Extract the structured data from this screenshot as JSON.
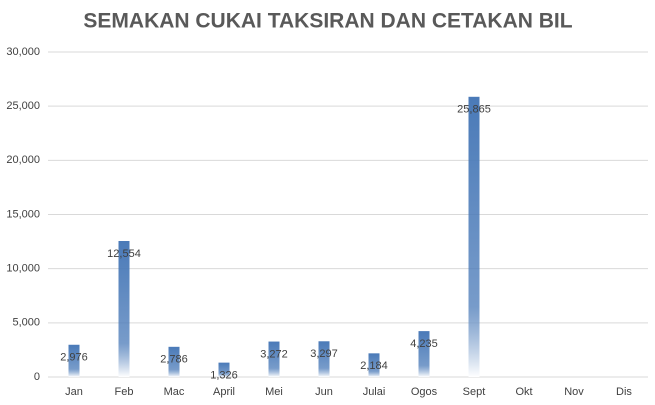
{
  "chart_data": {
    "type": "bar",
    "title": "SEMAKAN CUKAI TAKSIRAN DAN CETAKAN BIL",
    "categories": [
      "Jan",
      "Feb",
      "Mac",
      "April",
      "Mei",
      "Jun",
      "Julai",
      "Ogos",
      "Sept",
      "Okt",
      "Nov",
      "Dis"
    ],
    "values": [
      2976,
      12554,
      2786,
      1326,
      3272,
      3297,
      2184,
      4235,
      25865,
      null,
      null,
      null
    ],
    "value_labels": [
      "2,976",
      "12,554",
      "2,786",
      "1,326",
      "3,272",
      "3,297",
      "2,184",
      "4,235",
      "25,865",
      null,
      null,
      null
    ],
    "color": "#4a7ab8",
    "ylim": [
      0,
      30000
    ],
    "yticks": [
      0,
      {
        "value": 5000,
        "label": "5,000"
      },
      {
        "value": 10000,
        "label": "10,000"
      },
      {
        "value": 15000,
        "label": "15,000"
      },
      {
        "value": 20000,
        "label": "20,000"
      },
      {
        "value": 25000,
        "label": "25,000"
      },
      {
        "value": 30000,
        "label": "30,000"
      }
    ],
    "grid": true
  }
}
